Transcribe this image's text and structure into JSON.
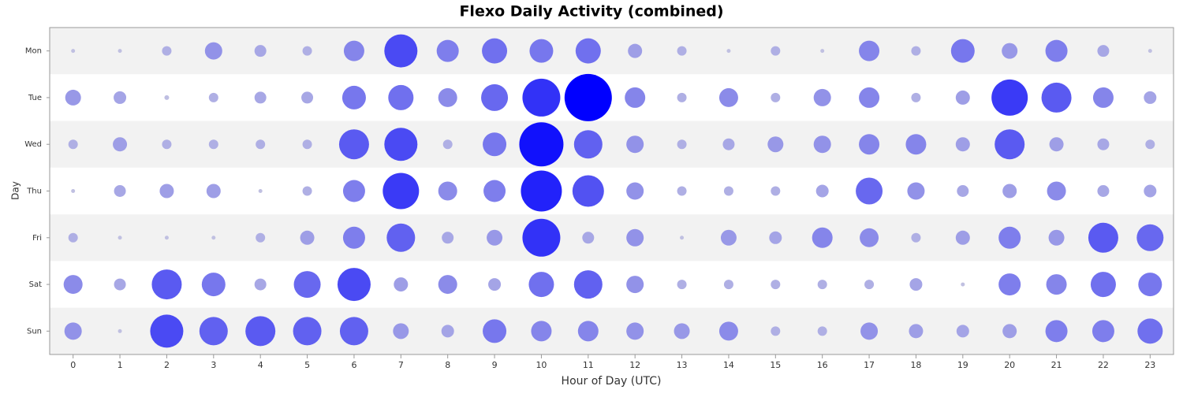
{
  "chart_data": {
    "type": "bubble",
    "title": "Flexo Daily Activity (combined)",
    "x_label": "Hour of Day (UTC)",
    "y_label": "Day",
    "x": [
      0,
      1,
      2,
      3,
      4,
      5,
      6,
      7,
      8,
      9,
      10,
      11,
      12,
      13,
      14,
      15,
      16,
      17,
      18,
      19,
      20,
      21,
      22,
      23
    ],
    "xlim": [
      -0.5,
      23.5
    ],
    "xticks": [
      0,
      1,
      2,
      3,
      4,
      5,
      6,
      7,
      8,
      9,
      10,
      11,
      12,
      13,
      14,
      15,
      16,
      17,
      18,
      19,
      20,
      21,
      22,
      23
    ],
    "color_low": "#c8c8e0",
    "color_high": "#0000ff",
    "series": [
      {
        "name": "Mon",
        "values": [
          5,
          5,
          12,
          22,
          15,
          12,
          26,
          42,
          28,
          32,
          30,
          32,
          18,
          12,
          5,
          12,
          5,
          26,
          12,
          30,
          20,
          28,
          15,
          5
        ]
      },
      {
        "name": "Tue",
        "values": [
          20,
          16,
          6,
          12,
          15,
          15,
          30,
          32,
          24,
          34,
          48,
          60,
          26,
          12,
          24,
          12,
          22,
          26,
          12,
          18,
          46,
          38,
          26,
          16
        ]
      },
      {
        "name": "Wed",
        "values": [
          12,
          18,
          12,
          12,
          12,
          12,
          38,
          42,
          12,
          30,
          56,
          36,
          22,
          12,
          15,
          20,
          22,
          26,
          26,
          18,
          38,
          18,
          15,
          12
        ]
      },
      {
        "name": "Thu",
        "values": [
          5,
          15,
          18,
          18,
          5,
          12,
          28,
          46,
          24,
          28,
          52,
          40,
          22,
          12,
          12,
          12,
          16,
          34,
          22,
          15,
          18,
          24,
          15,
          16
        ]
      },
      {
        "name": "Fri",
        "values": [
          12,
          5,
          5,
          5,
          12,
          18,
          28,
          36,
          15,
          20,
          48,
          15,
          22,
          5,
          20,
          16,
          26,
          24,
          12,
          18,
          28,
          20,
          38,
          34
        ]
      },
      {
        "name": "Sat",
        "values": [
          24,
          15,
          38,
          30,
          15,
          34,
          42,
          18,
          24,
          16,
          32,
          36,
          22,
          12,
          12,
          12,
          12,
          12,
          16,
          5,
          28,
          26,
          32,
          30
        ]
      },
      {
        "name": "Sun",
        "values": [
          22,
          5,
          42,
          36,
          38,
          36,
          36,
          20,
          16,
          30,
          26,
          26,
          22,
          20,
          24,
          12,
          12,
          22,
          18,
          16,
          18,
          28,
          28,
          32
        ]
      }
    ]
  }
}
